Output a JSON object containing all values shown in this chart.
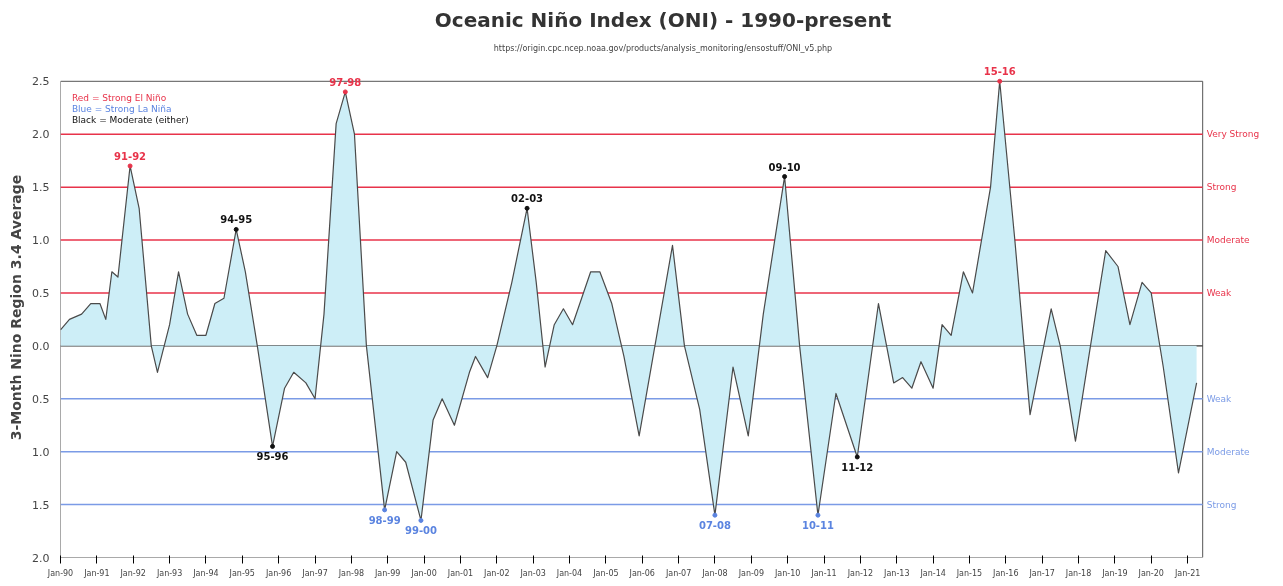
{
  "chart_data": {
    "type": "area",
    "title": "Oceanic Niño Index (ONI) - 1990-present",
    "subtitle": "https://origin.cpc.ncep.noaa.gov/products/analysis_monitoring/ensostuff/ONI_v5.php",
    "ylabel": "3-Month Nino Region 3.4 Average",
    "annotations": [
      "Red = Strong El Niño",
      "Blue = Strong La Niña",
      "Black = Moderate (either)"
    ],
    "xlim": [
      "1990-01",
      "2021-06"
    ],
    "xticks": [
      {
        "value": "1990-01",
        "label": "Jan-90"
      },
      {
        "value": "1991-01",
        "label": "Jan-91"
      },
      {
        "value": "1992-01",
        "label": "Jan-92"
      },
      {
        "value": "1993-01",
        "label": "Jan-93"
      },
      {
        "value": "1994-01",
        "label": "Jan-94"
      },
      {
        "value": "1995-01",
        "label": "Jan-95"
      },
      {
        "value": "1996-01",
        "label": "Jan-96"
      },
      {
        "value": "1997-01",
        "label": "Jan-97"
      },
      {
        "value": "1998-01",
        "label": "Jan-98"
      },
      {
        "value": "1999-01",
        "label": "Jan-99"
      },
      {
        "value": "2000-01",
        "label": "Jan-00"
      },
      {
        "value": "2001-01",
        "label": "Jan-01"
      },
      {
        "value": "2002-01",
        "label": "Jan-02"
      },
      {
        "value": "2003-01",
        "label": "Jan-03"
      },
      {
        "value": "2004-01",
        "label": "Jan-04"
      },
      {
        "value": "2005-01",
        "label": "Jan-05"
      },
      {
        "value": "2006-01",
        "label": "Jan-06"
      },
      {
        "value": "2007-01",
        "label": "Jan-07"
      },
      {
        "value": "2008-01",
        "label": "Jan-08"
      },
      {
        "value": "2009-01",
        "label": "Jan-09"
      },
      {
        "value": "2010-01",
        "label": "Jan-10"
      },
      {
        "value": "2011-01",
        "label": "Jan-11"
      },
      {
        "value": "2012-01",
        "label": "Jan-12"
      },
      {
        "value": "2013-01",
        "label": "Jan-13"
      },
      {
        "value": "2014-01",
        "label": "Jan-14"
      },
      {
        "value": "2015-01",
        "label": "Jan-15"
      },
      {
        "value": "2016-01",
        "label": "Jan-16"
      },
      {
        "value": "2017-01",
        "label": "Jan-17"
      },
      {
        "value": "2018-01",
        "label": "Jan-18"
      },
      {
        "value": "2019-01",
        "label": "Jan-19"
      },
      {
        "value": "2020-01",
        "label": "Jan-20"
      },
      {
        "value": "2021-01",
        "label": "Jan-21"
      }
    ],
    "ylim": [
      -2.0,
      2.5
    ],
    "yticks": [
      {
        "value": 2.5,
        "label": "2.5"
      },
      {
        "value": 2.0,
        "label": "2.0"
      },
      {
        "value": 1.5,
        "label": "1.5"
      },
      {
        "value": 1.0,
        "label": "1.0"
      },
      {
        "value": 0.5,
        "label": "0.5"
      },
      {
        "value": 0.0,
        "label": "0.0"
      },
      {
        "value": -0.5,
        "label": "0.5"
      },
      {
        "value": -1.0,
        "label": "1.0"
      },
      {
        "value": -1.5,
        "label": "1.5"
      },
      {
        "value": -2.0,
        "label": "2.0"
      }
    ],
    "grid": false,
    "ref_lines": [
      {
        "axis": "y",
        "value": 2.0,
        "label": "Very Strong",
        "color": "#e8334a"
      },
      {
        "axis": "y",
        "value": 1.5,
        "label": "Strong",
        "color": "#e8334a"
      },
      {
        "axis": "y",
        "value": 1.0,
        "label": "Moderate",
        "color": "#e8334a"
      },
      {
        "axis": "y",
        "value": 0.5,
        "label": "Weak",
        "color": "#e8334a"
      },
      {
        "axis": "y",
        "value": 0.0,
        "color": "#333333"
      },
      {
        "axis": "y",
        "value": -0.5,
        "label": "Weak",
        "color": "#7b9be6"
      },
      {
        "axis": "y",
        "value": -1.0,
        "label": "Moderate",
        "color": "#7b9be6"
      },
      {
        "axis": "y",
        "value": -1.5,
        "label": "Strong",
        "color": "#7b9be6"
      }
    ],
    "series": [
      {
        "color": "#cdeef7",
        "line_style": "solid",
        "x": [
          "1990-01",
          "1990-04",
          "1990-08",
          "1990-11",
          "1991-02",
          "1991-04",
          "1991-06",
          "1991-08",
          "1991-12",
          "1992-03",
          "1992-07",
          "1992-09",
          "1993-01",
          "1993-04",
          "1993-07",
          "1993-10",
          "1994-01",
          "1994-04",
          "1994-07",
          "1994-11",
          "1995-02",
          "1995-06",
          "1995-11",
          "1996-03",
          "1996-06",
          "1996-10",
          "1997-01",
          "1997-04",
          "1997-08",
          "1997-11",
          "1998-02",
          "1998-06",
          "1998-12",
          "1999-04",
          "1999-07",
          "1999-12",
          "2000-04",
          "2000-07",
          "2000-11",
          "2001-04",
          "2001-06",
          "2001-10",
          "2002-01",
          "2002-06",
          "2002-11",
          "2003-02",
          "2003-05",
          "2003-08",
          "2003-11",
          "2004-02",
          "2004-08",
          "2004-11",
          "2005-03",
          "2005-07",
          "2005-12",
          "2006-04",
          "2006-11",
          "2007-03",
          "2007-08",
          "2008-01",
          "2008-07",
          "2008-12",
          "2009-05",
          "2009-12",
          "2010-05",
          "2010-11",
          "2011-05",
          "2011-12",
          "2012-07",
          "2012-12",
          "2013-03",
          "2013-06",
          "2013-09",
          "2014-01",
          "2014-04",
          "2014-07",
          "2014-11",
          "2015-02",
          "2015-08",
          "2015-11",
          "2016-04",
          "2016-09",
          "2017-04",
          "2017-07",
          "2017-12",
          "2018-05",
          "2018-10",
          "2019-02",
          "2019-06",
          "2019-10",
          "2020-01",
          "2020-05",
          "2020-10",
          "2021-04"
        ],
        "values": [
          0.15,
          0.25,
          0.3,
          0.4,
          0.4,
          0.25,
          0.7,
          0.65,
          1.7,
          1.3,
          0.0,
          -0.25,
          0.2,
          0.7,
          0.3,
          0.1,
          0.1,
          0.4,
          0.45,
          1.1,
          0.7,
          0.0,
          -0.95,
          -0.4,
          -0.25,
          -0.35,
          -0.5,
          0.3,
          2.1,
          2.4,
          2.0,
          0.0,
          -1.55,
          -1.0,
          -1.1,
          -1.65,
          -0.7,
          -0.5,
          -0.75,
          -0.25,
          -0.1,
          -0.3,
          0.0,
          0.6,
          1.3,
          0.6,
          -0.2,
          0.2,
          0.35,
          0.2,
          0.7,
          0.7,
          0.4,
          -0.1,
          -0.85,
          -0.2,
          0.95,
          0.0,
          -0.6,
          -1.6,
          -0.2,
          -0.85,
          0.3,
          1.6,
          0.0,
          -1.6,
          -0.45,
          -1.05,
          0.4,
          -0.35,
          -0.3,
          -0.4,
          -0.15,
          -0.4,
          0.2,
          0.1,
          0.7,
          0.5,
          1.5,
          2.5,
          1.0,
          -0.65,
          0.35,
          0.0,
          -0.9,
          0.0,
          0.9,
          0.75,
          0.2,
          0.6,
          0.5,
          -0.2,
          -1.2,
          -0.35
        ]
      },
      {
        "type": "scatter",
        "marker": "circle",
        "color": "#e8334a",
        "x": [
          "1991-12",
          "1997-11",
          "2015-11"
        ],
        "values": [
          1.7,
          2.4,
          2.5
        ],
        "value_labels": [
          "91-92",
          "97-98",
          "15-16"
        ]
      },
      {
        "type": "scatter",
        "marker": "circle",
        "color": "#5b84e0",
        "x": [
          "1998-12",
          "1999-12",
          "2008-01",
          "2010-11"
        ],
        "values": [
          -1.55,
          -1.65,
          -1.6,
          -1.6
        ],
        "value_labels": [
          "98-99",
          "99-00",
          "07-08",
          "10-11"
        ]
      },
      {
        "type": "scatter",
        "marker": "circle",
        "color": "#111111",
        "x": [
          "1994-11",
          "2002-11",
          "2009-12",
          "1995-11",
          "2011-12"
        ],
        "values": [
          1.1,
          1.3,
          1.6,
          -0.95,
          -1.05
        ],
        "value_labels": [
          "94-95",
          "02-03",
          "09-10",
          "95-96",
          "11-12"
        ]
      }
    ]
  }
}
